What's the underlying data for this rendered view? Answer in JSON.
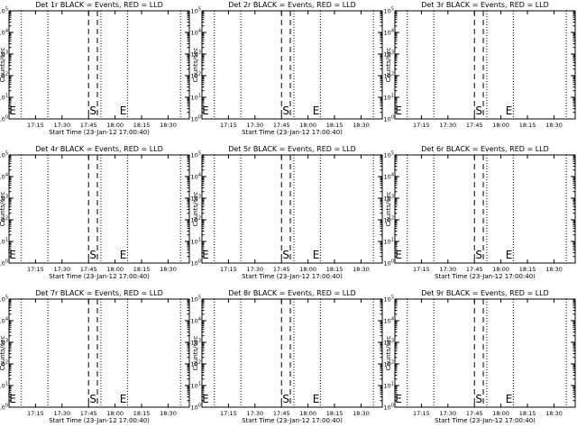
{
  "figure": {
    "colors": {
      "axes": "#000000",
      "background": "#ffffff"
    }
  },
  "chart_data": [
    {
      "type": "line",
      "title": "Det 1r BLACK = Events, RED = LLD",
      "xlabel": "Start Time (23-Jan-12 17:00:40)",
      "ylabel": "Counts/sec",
      "x_ticks": [
        "17:15",
        "17:30",
        "17:45",
        "18:00",
        "18:15",
        "18:30"
      ],
      "xlim": [
        "17:00",
        "18:42"
      ],
      "y_scale": "log",
      "ylim": [
        1,
        100000
      ],
      "y_ticks": [
        {
          "base": "10",
          "exp": "0"
        },
        {
          "base": "10",
          "exp": "1"
        },
        {
          "base": "10",
          "exp": "2"
        },
        {
          "base": "10",
          "exp": "3"
        },
        {
          "base": "10",
          "exp": "4"
        },
        {
          "base": "10",
          "exp": "5"
        }
      ],
      "dotted_lines": [
        "17:07",
        "17:22",
        "17:52",
        "18:07",
        "18:37"
      ],
      "dashed_lines": [
        "17:45",
        "17:50"
      ],
      "markers": [
        {
          "label": "E",
          "x": "17:00"
        },
        {
          "label": "S",
          "x": "17:45"
        },
        {
          "label": "E",
          "x": "18:02"
        }
      ],
      "series": []
    },
    {
      "type": "line",
      "title": "Det 2r BLACK = Events, RED = LLD",
      "xlabel": "Start Time (23-Jan-12 17:00:40)",
      "ylabel": "Counts/sec",
      "x_ticks": [
        "17:15",
        "17:30",
        "17:45",
        "18:00",
        "18:15",
        "18:30"
      ],
      "xlim": [
        "17:00",
        "18:42"
      ],
      "y_scale": "log",
      "ylim": [
        1,
        100000
      ],
      "y_ticks": [
        {
          "base": "10",
          "exp": "0"
        },
        {
          "base": "10",
          "exp": "1"
        },
        {
          "base": "10",
          "exp": "2"
        },
        {
          "base": "10",
          "exp": "3"
        },
        {
          "base": "10",
          "exp": "4"
        },
        {
          "base": "10",
          "exp": "5"
        }
      ],
      "dotted_lines": [
        "17:07",
        "17:22",
        "17:52",
        "18:07",
        "18:37"
      ],
      "dashed_lines": [
        "17:45",
        "17:50"
      ],
      "markers": [
        {
          "label": "E",
          "x": "17:00"
        },
        {
          "label": "S",
          "x": "17:45"
        },
        {
          "label": "E",
          "x": "18:02"
        }
      ],
      "series": []
    },
    {
      "type": "line",
      "title": "Det 3r BLACK = Events, RED = LLD",
      "xlabel": "",
      "ylabel": "Counts/sec",
      "x_ticks": [
        "17:15",
        "17:30",
        "17:45",
        "18:00",
        "18:15",
        "18:30"
      ],
      "xlim": [
        "17:00",
        "18:42"
      ],
      "y_scale": "log",
      "ylim": [
        1,
        100000
      ],
      "y_ticks": [
        {
          "base": "10",
          "exp": "0"
        },
        {
          "base": "10",
          "exp": "1"
        },
        {
          "base": "10",
          "exp": "2"
        },
        {
          "base": "10",
          "exp": "3"
        },
        {
          "base": "10",
          "exp": "4"
        },
        {
          "base": "10",
          "exp": "5"
        }
      ],
      "dotted_lines": [
        "17:07",
        "17:22",
        "17:52",
        "18:07",
        "18:37"
      ],
      "dashed_lines": [
        "17:45",
        "17:50"
      ],
      "markers": [
        {
          "label": "E",
          "x": "17:00"
        },
        {
          "label": "S",
          "x": "17:45"
        },
        {
          "label": "E",
          "x": "18:02"
        }
      ],
      "series": []
    },
    {
      "type": "line",
      "title": "Det 4r BLACK = Events, RED = LLD",
      "xlabel": "Start Time (23-Jan-12 17:00:40)",
      "ylabel": "Counts/sec",
      "x_ticks": [
        "17:15",
        "17:30",
        "17:45",
        "18:00",
        "18:15",
        "18:30"
      ],
      "xlim": [
        "17:00",
        "18:42"
      ],
      "y_scale": "log",
      "ylim": [
        1,
        100000
      ],
      "y_ticks": [
        {
          "base": "10",
          "exp": "0"
        },
        {
          "base": "10",
          "exp": "1"
        },
        {
          "base": "10",
          "exp": "2"
        },
        {
          "base": "10",
          "exp": "3"
        },
        {
          "base": "10",
          "exp": "4"
        },
        {
          "base": "10",
          "exp": "5"
        }
      ],
      "dotted_lines": [
        "17:07",
        "17:22",
        "17:52",
        "18:07",
        "18:37"
      ],
      "dashed_lines": [
        "17:45",
        "17:50"
      ],
      "markers": [
        {
          "label": "E",
          "x": "17:00"
        },
        {
          "label": "S",
          "x": "17:45"
        },
        {
          "label": "E",
          "x": "18:02"
        }
      ],
      "series": []
    },
    {
      "type": "line",
      "title": "Det 5r BLACK = Events, RED = LLD",
      "xlabel": "Start Time (23-Jan-12 17:00:40)",
      "ylabel": "Counts/sec",
      "x_ticks": [
        "17:15",
        "17:30",
        "17:45",
        "18:00",
        "18:15",
        "18:30"
      ],
      "xlim": [
        "17:00",
        "18:42"
      ],
      "y_scale": "log",
      "ylim": [
        1,
        100000
      ],
      "y_ticks": [
        {
          "base": "10",
          "exp": "0"
        },
        {
          "base": "10",
          "exp": "1"
        },
        {
          "base": "10",
          "exp": "2"
        },
        {
          "base": "10",
          "exp": "3"
        },
        {
          "base": "10",
          "exp": "4"
        },
        {
          "base": "10",
          "exp": "5"
        }
      ],
      "dotted_lines": [
        "17:07",
        "17:22",
        "17:52",
        "18:07",
        "18:37"
      ],
      "dashed_lines": [
        "17:45",
        "17:50"
      ],
      "markers": [
        {
          "label": "E",
          "x": "17:00"
        },
        {
          "label": "S",
          "x": "17:45"
        },
        {
          "label": "E",
          "x": "18:02"
        }
      ],
      "series": []
    },
    {
      "type": "line",
      "title": "Det 6r BLACK = Events, RED = LLD",
      "xlabel": "Start Time (23-Jan-12 17:00:40)",
      "ylabel": "Counts/sec",
      "x_ticks": [
        "17:15",
        "17:30",
        "17:45",
        "18:00",
        "18:15",
        "18:30"
      ],
      "xlim": [
        "17:00",
        "18:42"
      ],
      "y_scale": "log",
      "ylim": [
        1,
        100000
      ],
      "y_ticks": [
        {
          "base": "10",
          "exp": "0"
        },
        {
          "base": "10",
          "exp": "1"
        },
        {
          "base": "10",
          "exp": "2"
        },
        {
          "base": "10",
          "exp": "3"
        },
        {
          "base": "10",
          "exp": "4"
        },
        {
          "base": "10",
          "exp": "5"
        }
      ],
      "dotted_lines": [
        "17:07",
        "17:22",
        "17:52",
        "18:07",
        "18:37"
      ],
      "dashed_lines": [
        "17:45",
        "17:50"
      ],
      "markers": [
        {
          "label": "E",
          "x": "17:00"
        },
        {
          "label": "S",
          "x": "17:45"
        },
        {
          "label": "E",
          "x": "18:02"
        }
      ],
      "series": []
    },
    {
      "type": "line",
      "title": "Det 7r BLACK = Events, RED = LLD",
      "xlabel": "Start Time (23-Jan-12 17:00:40)",
      "ylabel": "Counts/sec",
      "x_ticks": [
        "17:15",
        "17:30",
        "17:45",
        "18:00",
        "18:15",
        "18:30"
      ],
      "xlim": [
        "17:00",
        "18:42"
      ],
      "y_scale": "log",
      "ylim": [
        1,
        100000
      ],
      "y_ticks": [
        {
          "base": "10",
          "exp": "0"
        },
        {
          "base": "10",
          "exp": "1"
        },
        {
          "base": "10",
          "exp": "2"
        },
        {
          "base": "10",
          "exp": "3"
        },
        {
          "base": "10",
          "exp": "4"
        },
        {
          "base": "10",
          "exp": "5"
        }
      ],
      "dotted_lines": [
        "17:07",
        "17:22",
        "17:52",
        "18:07",
        "18:37"
      ],
      "dashed_lines": [
        "17:45",
        "17:50"
      ],
      "markers": [
        {
          "label": "E",
          "x": "17:00"
        },
        {
          "label": "S",
          "x": "17:45"
        },
        {
          "label": "E",
          "x": "18:02"
        }
      ],
      "series": []
    },
    {
      "type": "line",
      "title": "Det 8r BLACK = Events, RED = LLD",
      "xlabel": "Start Time (23-Jan-12 17:00:40)",
      "ylabel": "Counts/sec",
      "x_ticks": [
        "17:15",
        "17:30",
        "17:45",
        "18:00",
        "18:15",
        "18:30"
      ],
      "xlim": [
        "17:00",
        "18:42"
      ],
      "y_scale": "log",
      "ylim": [
        1,
        100000
      ],
      "y_ticks": [
        {
          "base": "10",
          "exp": "0"
        },
        {
          "base": "10",
          "exp": "1"
        },
        {
          "base": "10",
          "exp": "2"
        },
        {
          "base": "10",
          "exp": "3"
        },
        {
          "base": "10",
          "exp": "4"
        },
        {
          "base": "10",
          "exp": "5"
        }
      ],
      "dotted_lines": [
        "17:07",
        "17:22",
        "17:52",
        "18:07",
        "18:37"
      ],
      "dashed_lines": [
        "17:45",
        "17:50"
      ],
      "markers": [
        {
          "label": "E",
          "x": "17:00"
        },
        {
          "label": "S",
          "x": "17:45"
        },
        {
          "label": "E",
          "x": "18:02"
        }
      ],
      "series": []
    },
    {
      "type": "line",
      "title": "Det 9r BLACK = Events, RED = LLD",
      "xlabel": "Start Time (23-Jan-12 17:00:40)",
      "ylabel": "Counts/sec",
      "x_ticks": [
        "17:15",
        "17:30",
        "17:45",
        "18:00",
        "18:15",
        "18:30"
      ],
      "xlim": [
        "17:00",
        "18:42"
      ],
      "y_scale": "log",
      "ylim": [
        1,
        100000
      ],
      "y_ticks": [
        {
          "base": "10",
          "exp": "0"
        },
        {
          "base": "10",
          "exp": "1"
        },
        {
          "base": "10",
          "exp": "2"
        },
        {
          "base": "10",
          "exp": "3"
        },
        {
          "base": "10",
          "exp": "4"
        },
        {
          "base": "10",
          "exp": "5"
        }
      ],
      "dotted_lines": [
        "17:07",
        "17:22",
        "17:52",
        "18:07",
        "18:37"
      ],
      "dashed_lines": [
        "17:45",
        "17:50"
      ],
      "markers": [
        {
          "label": "E",
          "x": "17:00"
        },
        {
          "label": "S",
          "x": "17:45"
        },
        {
          "label": "E",
          "x": "18:02"
        }
      ],
      "series": []
    }
  ]
}
